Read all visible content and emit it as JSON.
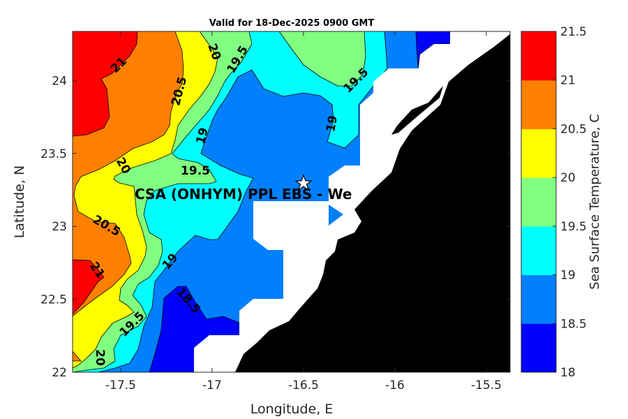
{
  "chart_data": {
    "type": "heatmap",
    "subtype": "filled-contour-map",
    "title": "Valid for 18-Dec-2025 0900 GMT",
    "xlabel": "Longitude, E",
    "ylabel": "Latitude, N",
    "xlim": [
      -17.763,
      -15.37
    ],
    "ylim": [
      22,
      24.337
    ],
    "xticks": [
      -17.5,
      -17,
      -16.5,
      -16,
      -15.5
    ],
    "xtick_labels": [
      "-17.5",
      "-17",
      "-16.5",
      "-16",
      "-15.5"
    ],
    "yticks": [
      22,
      22.5,
      23,
      23.5,
      24
    ],
    "ytick_labels": [
      "22",
      "22.5",
      "23",
      "23.5",
      "24"
    ],
    "colorbar": {
      "label": "Sea Surface Temperature, C",
      "levels": [
        18,
        18.5,
        19,
        19.5,
        20,
        20.5,
        21,
        21.5
      ],
      "level_labels": [
        "18",
        "18.5",
        "19",
        "19.5",
        "20",
        "20.5",
        "21",
        "21.5"
      ],
      "colors": [
        "#0000ff",
        "#0080ff",
        "#00ffff",
        "#80ff80",
        "#ffff00",
        "#ff8000",
        "#ff0000"
      ]
    },
    "contour_labels": [
      "21",
      "20.5",
      "20",
      "19.5",
      "19.5",
      "19",
      "19",
      "20",
      "19.5",
      "20.5",
      "21",
      "19",
      "18.5",
      "19.5",
      "20"
    ],
    "annotation": {
      "text": "CSA (ONHYM) PPL EBS  - We",
      "marker": "star",
      "lon": -16.49,
      "lat": 23.29
    },
    "land_color": "#000000",
    "nodata_color": "#ffffff"
  }
}
